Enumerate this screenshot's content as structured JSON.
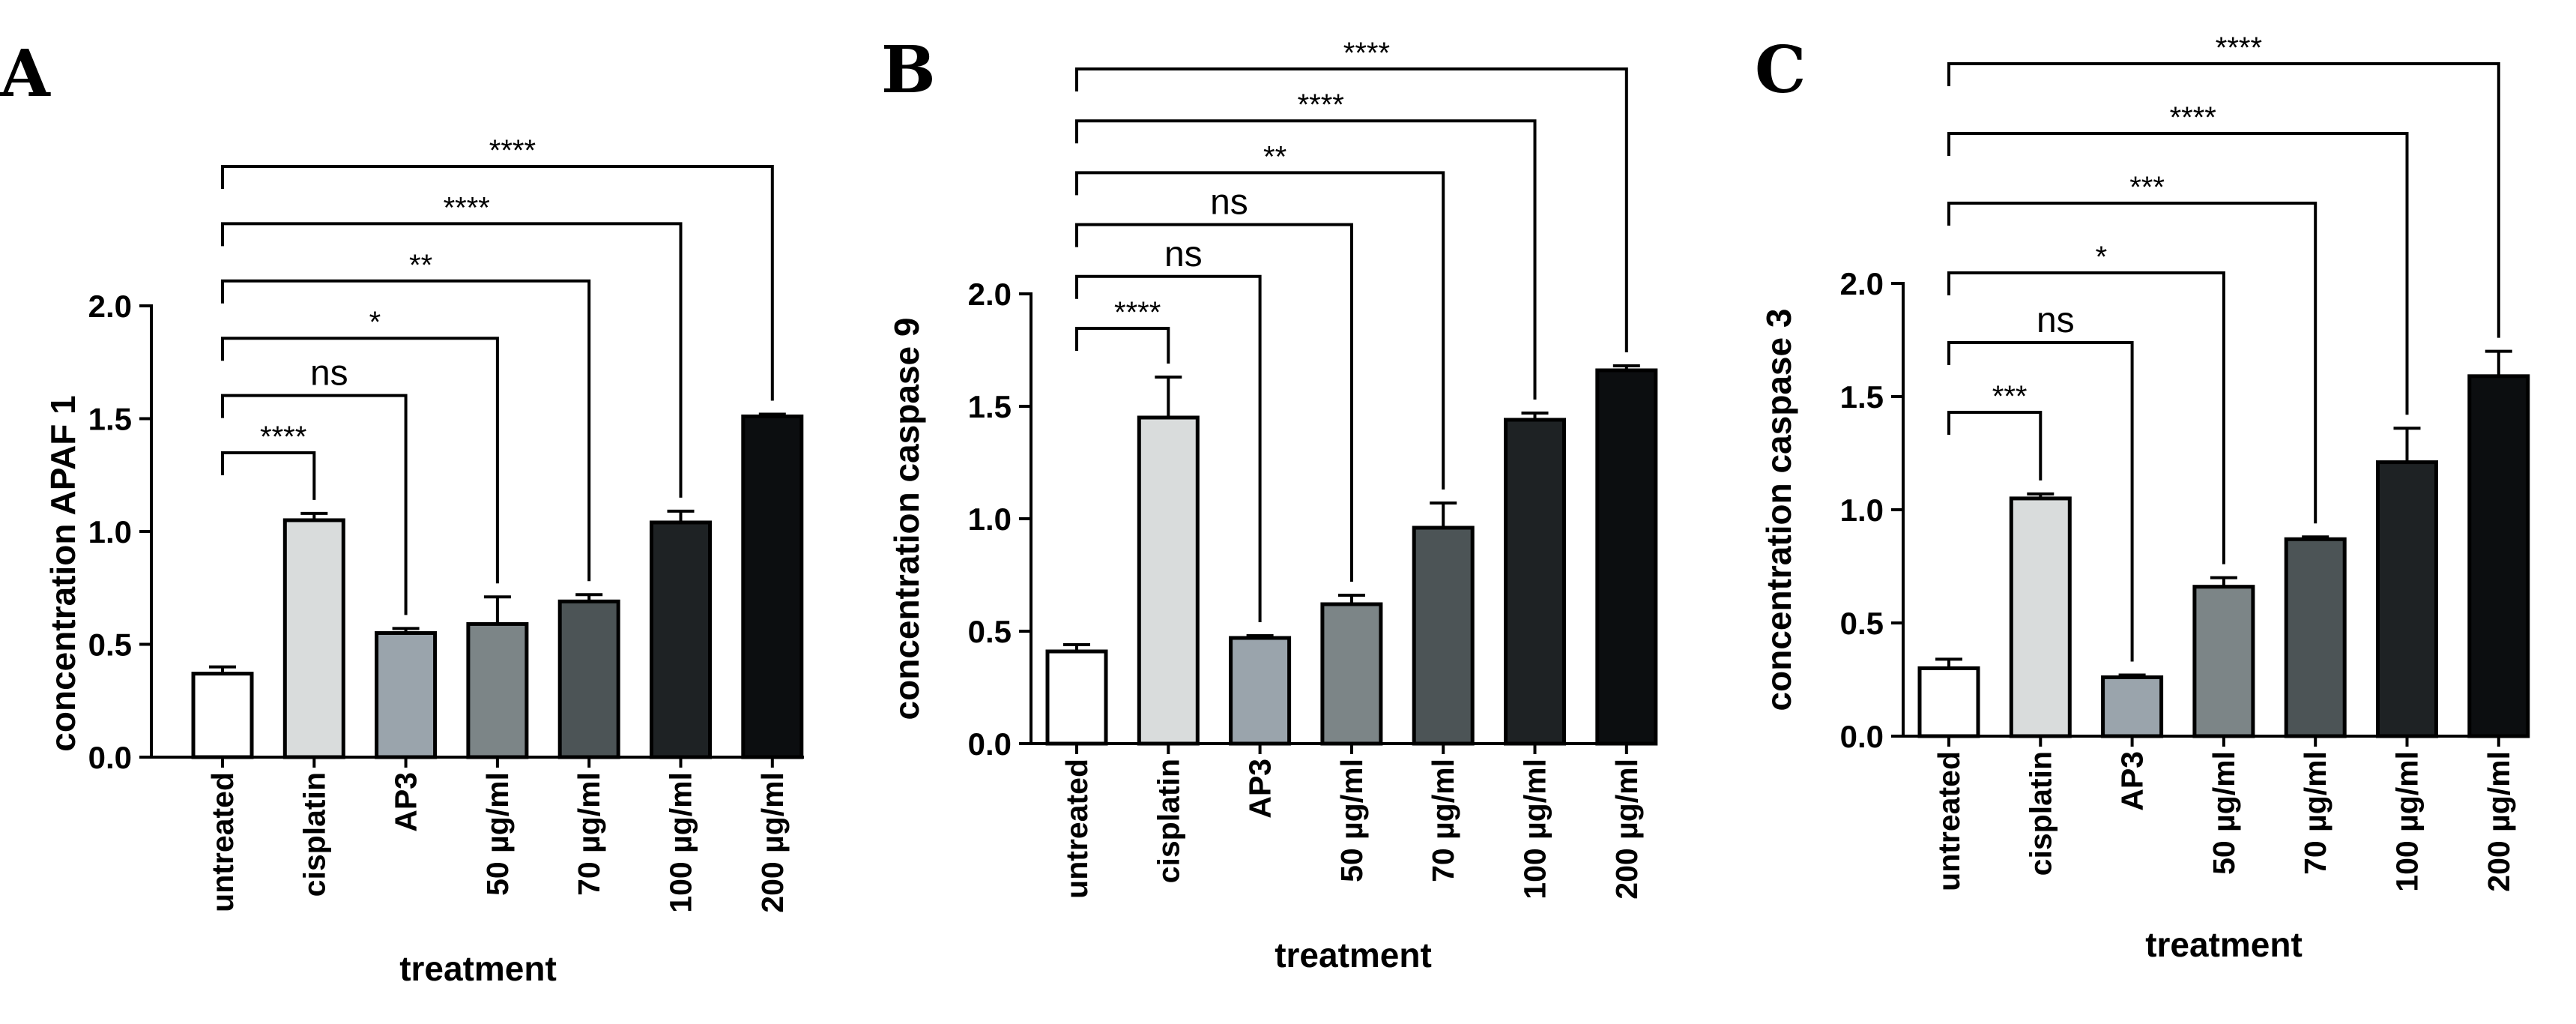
{
  "chart_data": [
    {
      "type": "bar",
      "panel_label": "A",
      "categories": [
        "untreated",
        "cisplatin",
        "AP3",
        "50 µg/ml",
        "70 µg/ml",
        "100 µg/ml",
        "200 µg/ml"
      ],
      "values": [
        0.37,
        1.05,
        0.55,
        0.59,
        0.69,
        1.04,
        1.51
      ],
      "errors": [
        0.03,
        0.03,
        0.02,
        0.12,
        0.03,
        0.05,
        0.01
      ],
      "bar_colors": [
        "#ffffff",
        "#d9dcdc",
        "#9aa4ac",
        "#7c8587",
        "#4c5456",
        "#1e2224",
        "#0c0e10"
      ],
      "xlabel": "treatment",
      "ylabel": "concentration APAF 1",
      "ylim": [
        0,
        2.0
      ],
      "yticks": [
        "0.0",
        "0.5",
        "1.0",
        "1.5",
        "2.0"
      ],
      "significance": [
        {
          "target": 1,
          "label": "****"
        },
        {
          "target": 2,
          "label": "ns"
        },
        {
          "target": 3,
          "label": "*"
        },
        {
          "target": 4,
          "label": "**"
        },
        {
          "target": 5,
          "label": "****"
        },
        {
          "target": 6,
          "label": "****"
        }
      ]
    },
    {
      "type": "bar",
      "panel_label": "B",
      "categories": [
        "untreated",
        "cisplatin",
        "AP3",
        "50 µg/ml",
        "70 µg/ml",
        "100 µg/ml",
        "200 µg/ml"
      ],
      "values": [
        0.41,
        1.45,
        0.47,
        0.62,
        0.96,
        1.44,
        1.66
      ],
      "errors": [
        0.03,
        0.18,
        0.01,
        0.04,
        0.11,
        0.03,
        0.02
      ],
      "bar_colors": [
        "#ffffff",
        "#d9dcdc",
        "#9aa4ac",
        "#7c8587",
        "#4c5456",
        "#1e2224",
        "#0c0e10"
      ],
      "xlabel": "treatment",
      "ylabel": "concentration caspase 9",
      "ylim": [
        0,
        2.0
      ],
      "yticks": [
        "0.0",
        "0.5",
        "1.0",
        "1.5",
        "2.0"
      ],
      "significance": [
        {
          "target": 1,
          "label": "****"
        },
        {
          "target": 2,
          "label": "ns"
        },
        {
          "target": 3,
          "label": "ns"
        },
        {
          "target": 4,
          "label": "**"
        },
        {
          "target": 5,
          "label": "****"
        },
        {
          "target": 6,
          "label": "****"
        }
      ]
    },
    {
      "type": "bar",
      "panel_label": "C",
      "categories": [
        "untreated",
        "cisplatin",
        "AP3",
        "50 µg/ml",
        "70 µg/ml",
        "100 µg/ml",
        "200 µg/ml"
      ],
      "values": [
        0.3,
        1.05,
        0.26,
        0.66,
        0.87,
        1.21,
        1.59
      ],
      "errors": [
        0.04,
        0.02,
        0.01,
        0.04,
        0.01,
        0.15,
        0.11
      ],
      "bar_colors": [
        "#ffffff",
        "#d9dcdc",
        "#9aa4ac",
        "#7c8587",
        "#4c5456",
        "#1e2224",
        "#0c0e10"
      ],
      "xlabel": "treatment",
      "ylabel": "concentration caspase 3",
      "ylim": [
        0,
        2.0
      ],
      "yticks": [
        "0.0",
        "0.5",
        "1.0",
        "1.5",
        "2.0"
      ],
      "significance": [
        {
          "target": 1,
          "label": "***"
        },
        {
          "target": 2,
          "label": "ns"
        },
        {
          "target": 3,
          "label": "*"
        },
        {
          "target": 4,
          "label": "***"
        },
        {
          "target": 5,
          "label": "****"
        },
        {
          "target": 6,
          "label": "****"
        }
      ]
    }
  ]
}
